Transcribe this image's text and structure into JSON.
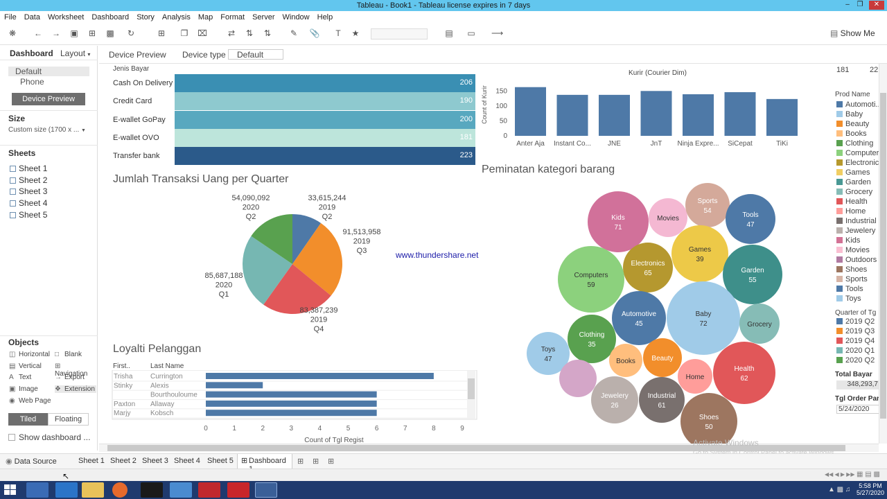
{
  "window": {
    "title": "Tableau - Book1 - Tableau license expires in 7 days"
  },
  "menu": [
    "File",
    "Data",
    "Worksheet",
    "Dashboard",
    "Story",
    "Analysis",
    "Map",
    "Format",
    "Server",
    "Window",
    "Help"
  ],
  "toolbar": {
    "show_me": "Show Me"
  },
  "left_panel": {
    "tab_dashboard": "Dashboard",
    "tab_layout": "Layout",
    "device_default": "Default",
    "device_phone": "Phone",
    "device_preview_button": "Device Preview",
    "size_heading": "Size",
    "size_value": "Custom size (1700 x ...",
    "sheets_heading": "Sheets",
    "sheets": [
      "Sheet 1",
      "Sheet 2",
      "Sheet 3",
      "Sheet 4",
      "Sheet 5"
    ],
    "objects_heading": "Objects",
    "objects_col1": [
      "Horizontal",
      "Vertical",
      "Text",
      "Image",
      "Web Page"
    ],
    "objects_col2": [
      "Blank",
      "Navigation",
      "Export",
      "Extension"
    ],
    "tiled": "Tiled",
    "floating": "Floating",
    "show_title": "Show dashboard ..."
  },
  "device_bar": {
    "preview": "Device Preview",
    "type_label": "Device type",
    "type_value": "Default"
  },
  "jenis_bayar": {
    "header": "Jenis Bayar",
    "rows": [
      {
        "label": "Cash On Delivery",
        "value": "206",
        "color": "#3a8fb3"
      },
      {
        "label": "Credit Card",
        "value": "190",
        "color": "#8ec9cf"
      },
      {
        "label": "E-wallet GoPay",
        "value": "200",
        "color": "#58a8bf"
      },
      {
        "label": "E-wallet OVO",
        "value": "181",
        "color": "#bde5db"
      },
      {
        "label": "Transfer bank",
        "value": "223",
        "color": "#2b5a8a"
      }
    ]
  },
  "kurir_chart": {
    "title": "Kurir (Courier Dim)",
    "ylabel": "Count of Kurir",
    "yticks": [
      "150",
      "100",
      "50",
      "0"
    ],
    "chart_data": {
      "type": "bar",
      "categories": [
        "Anter Aja",
        "Instant Co...",
        "JNE",
        "JnT",
        "Ninja Expre...",
        "SiCepat",
        "TiKi"
      ],
      "values": [
        164,
        138,
        138,
        151,
        140,
        147,
        124
      ],
      "ylim": [
        0,
        175
      ]
    }
  },
  "pie_chart": {
    "title": "Jumlah Transaksi Uang per Quarter",
    "chart_data": {
      "type": "pie",
      "slices": [
        {
          "label": "2019 Q2",
          "value": 33615244,
          "value_text": "33,615,244",
          "year": "2019",
          "quarter": "Q2",
          "color": "#4e79a7"
        },
        {
          "label": "2019 Q3",
          "value": 91513958,
          "value_text": "91,513,958",
          "year": "2019",
          "quarter": "Q3",
          "color": "#f28e2b"
        },
        {
          "label": "2019 Q4",
          "value": 83387239,
          "value_text": "83,387,239",
          "year": "2019",
          "quarter": "Q4",
          "color": "#e15759"
        },
        {
          "label": "2020 Q1",
          "value": 85687188,
          "value_text": "85,687,188",
          "year": "2020",
          "quarter": "Q1",
          "color": "#76b7b2"
        },
        {
          "label": "2020 Q2",
          "value": 54090092,
          "value_text": "54,090,092",
          "year": "2020",
          "quarter": "Q2",
          "color": "#59a14f"
        }
      ]
    }
  },
  "watermark_url": "www.thundershare.net",
  "loyalti": {
    "title": "Loyalti Pelanggan",
    "col_first": "First..",
    "col_last": "Last Name",
    "xlabel": "Count of Tgl Regist",
    "xticks": [
      "0",
      "1",
      "2",
      "3",
      "4",
      "5",
      "6",
      "7",
      "8",
      "9"
    ],
    "chart_data": {
      "type": "bar",
      "rows": [
        {
          "first": "Trisha",
          "last": "Currington",
          "value": 8
        },
        {
          "first": "Stinky",
          "last": "Alexis",
          "value": 2
        },
        {
          "first": "",
          "last": "Bourthouloume",
          "value": 6
        },
        {
          "first": "Paxton",
          "last": "Allaway",
          "value": 6
        },
        {
          "first": "Marjy",
          "last": "Kobsch",
          "value": 6
        }
      ],
      "xlim": [
        0,
        9
      ]
    }
  },
  "bubble_chart": {
    "title": "Peminatan kategori barang",
    "chart_data": {
      "type": "bubble",
      "items": [
        {
          "name": "Kids",
          "value": "71",
          "color": "#d1719a"
        },
        {
          "name": "Movies",
          "value": "",
          "color": "#f4b8d2"
        },
        {
          "name": "Sports",
          "value": "54",
          "color": "#d4a99a"
        },
        {
          "name": "Tools",
          "value": "47",
          "color": "#4e79a7"
        },
        {
          "name": "Games",
          "value": "39",
          "color": "#edc948"
        },
        {
          "name": "Electronics",
          "value": "65",
          "color": "#b5982f"
        },
        {
          "name": "Computers",
          "value": "59",
          "color": "#8cd17d"
        },
        {
          "name": "Garden",
          "value": "55",
          "color": "#3e8f8a"
        },
        {
          "name": "Automotive",
          "value": "45",
          "color": "#4e79a7"
        },
        {
          "name": "Baby",
          "value": "72",
          "color": "#a0cbe8"
        },
        {
          "name": "Grocery",
          "value": "",
          "color": "#86bcb6"
        },
        {
          "name": "Clothing",
          "value": "35",
          "color": "#59a14f"
        },
        {
          "name": "Toys",
          "value": "47",
          "color": "#a0cbe8"
        },
        {
          "name": "Books",
          "value": "",
          "color": "#ffbe7d"
        },
        {
          "name": "Beauty",
          "value": "",
          "color": "#f28e2b"
        },
        {
          "name": "Home",
          "value": "",
          "color": "#ff9d9a"
        },
        {
          "name": "Health",
          "value": "62",
          "color": "#e15759"
        },
        {
          "name": "Outdoors",
          "value": "",
          "color": "#d4a6c8"
        },
        {
          "name": "Jewelery",
          "value": "26",
          "color": "#bab0ac"
        },
        {
          "name": "Industrial",
          "value": "61",
          "color": "#79706e"
        },
        {
          "name": "Shoes",
          "value": "50",
          "color": "#9d7660"
        }
      ]
    }
  },
  "right_legend": {
    "top_values": [
      "181",
      "22"
    ],
    "prod_heading": "Prod Name",
    "prod_items": [
      {
        "name": "Automoti...",
        "color": "#4e79a7"
      },
      {
        "name": "Baby",
        "color": "#a0cbe8"
      },
      {
        "name": "Beauty",
        "color": "#f28e2b"
      },
      {
        "name": "Books",
        "color": "#ffbe7d"
      },
      {
        "name": "Clothing",
        "color": "#59a14f"
      },
      {
        "name": "Computers",
        "color": "#8cd17d"
      },
      {
        "name": "Electronics",
        "color": "#b6992d"
      },
      {
        "name": "Games",
        "color": "#f1ce63"
      },
      {
        "name": "Garden",
        "color": "#499894"
      },
      {
        "name": "Grocery",
        "color": "#86bcb6"
      },
      {
        "name": "Health",
        "color": "#e15759"
      },
      {
        "name": "Home",
        "color": "#ff9d9a"
      },
      {
        "name": "Industrial",
        "color": "#79706e"
      },
      {
        "name": "Jewelery",
        "color": "#bab0ac"
      },
      {
        "name": "Kids",
        "color": "#d37295"
      },
      {
        "name": "Movies",
        "color": "#fabfd2"
      },
      {
        "name": "Outdoors",
        "color": "#b07aa1"
      },
      {
        "name": "Shoes",
        "color": "#9d7660"
      },
      {
        "name": "Sports",
        "color": "#d7b5a6"
      },
      {
        "name": "Tools",
        "color": "#4e79a7"
      },
      {
        "name": "Toys",
        "color": "#a0cbe8"
      }
    ],
    "quarter_heading": "Quarter of Tg",
    "quarter_items": [
      {
        "name": "2019 Q2",
        "color": "#4e79a7"
      },
      {
        "name": "2019 Q3",
        "color": "#f28e2b"
      },
      {
        "name": "2019 Q4",
        "color": "#e15759"
      },
      {
        "name": "2020 Q1",
        "color": "#76b7b2"
      },
      {
        "name": "2020 Q2",
        "color": "#59a14f"
      }
    ],
    "total_bayar_heading": "Total Bayar",
    "total_bayar_value": "348,293,7",
    "tgl_order_heading": "Tgl Order Par.",
    "tgl_order_value": "5/24/2020"
  },
  "activate_windows": {
    "line1": "Activate Windows",
    "line2": "Go to System in Control Panel to activate Windows."
  },
  "tabs": {
    "data_source": "Data Source",
    "sheets": [
      "Sheet 1",
      "Sheet 2",
      "Sheet 3",
      "Sheet 4",
      "Sheet 5"
    ],
    "active": "Dashboard 1"
  },
  "clock": {
    "time": "5:58 PM",
    "date": "5/27/2020"
  }
}
